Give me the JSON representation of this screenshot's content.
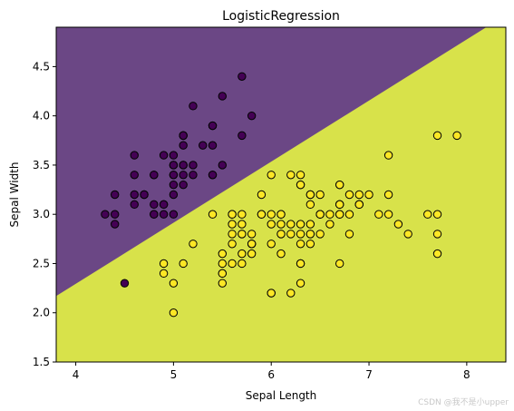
{
  "chart_data": {
    "type": "scatter",
    "title": "LogisticRegression",
    "xlabel": "Sepal Length",
    "ylabel": "Sepal Width",
    "xlim": [
      3.8,
      8.4
    ],
    "ylim": [
      1.5,
      4.9
    ],
    "xticks": [
      4,
      5,
      6,
      7,
      8
    ],
    "yticks": [
      1.5,
      2.0,
      2.5,
      3.0,
      3.5,
      4.0,
      4.5
    ],
    "yticks_labels": [
      "1.5",
      "2.0",
      "2.5",
      "3.0",
      "3.5",
      "4.0",
      "4.5"
    ],
    "grid": false,
    "decision_regions": {
      "class0_color": "#6b4785",
      "class1_color": "#d8e24a",
      "boundary": [
        [
          3.8,
          2.17
        ],
        [
          8.2,
          4.9
        ]
      ]
    },
    "series": [
      {
        "class": 0,
        "color": "#440154",
        "points": [
          [
            5.1,
            3.5
          ],
          [
            4.9,
            3.0
          ],
          [
            4.7,
            3.2
          ],
          [
            4.6,
            3.1
          ],
          [
            5.0,
            3.6
          ],
          [
            5.4,
            3.9
          ],
          [
            4.6,
            3.4
          ],
          [
            5.0,
            3.4
          ],
          [
            4.4,
            2.9
          ],
          [
            4.9,
            3.1
          ],
          [
            5.4,
            3.7
          ],
          [
            4.8,
            3.4
          ],
          [
            4.8,
            3.0
          ],
          [
            4.3,
            3.0
          ],
          [
            5.8,
            4.0
          ],
          [
            5.7,
            4.4
          ],
          [
            5.4,
            3.9
          ],
          [
            5.1,
            3.5
          ],
          [
            5.7,
            3.8
          ],
          [
            5.1,
            3.8
          ],
          [
            5.4,
            3.4
          ],
          [
            5.1,
            3.7
          ],
          [
            4.6,
            3.6
          ],
          [
            5.1,
            3.3
          ],
          [
            4.8,
            3.4
          ],
          [
            5.0,
            3.0
          ],
          [
            5.0,
            3.4
          ],
          [
            5.2,
            3.5
          ],
          [
            5.2,
            3.4
          ],
          [
            4.7,
            3.2
          ],
          [
            4.8,
            3.1
          ],
          [
            5.4,
            3.4
          ],
          [
            5.2,
            4.1
          ],
          [
            5.5,
            4.2
          ],
          [
            4.9,
            3.1
          ],
          [
            5.0,
            3.2
          ],
          [
            5.5,
            3.5
          ],
          [
            4.9,
            3.6
          ],
          [
            4.4,
            3.0
          ],
          [
            5.1,
            3.4
          ],
          [
            5.0,
            3.5
          ],
          [
            4.5,
            2.3
          ],
          [
            4.4,
            3.2
          ],
          [
            5.0,
            3.5
          ],
          [
            5.1,
            3.8
          ],
          [
            4.8,
            3.0
          ],
          [
            5.1,
            3.8
          ],
          [
            4.6,
            3.2
          ],
          [
            5.3,
            3.7
          ],
          [
            5.0,
            3.3
          ]
        ]
      },
      {
        "class": 1,
        "color": "#fde725",
        "points": [
          [
            7.0,
            3.2
          ],
          [
            6.4,
            3.2
          ],
          [
            6.9,
            3.1
          ],
          [
            5.5,
            2.3
          ],
          [
            6.5,
            2.8
          ],
          [
            5.7,
            2.8
          ],
          [
            6.3,
            3.3
          ],
          [
            4.9,
            2.4
          ],
          [
            6.6,
            2.9
          ],
          [
            5.2,
            2.7
          ],
          [
            5.0,
            2.0
          ],
          [
            5.9,
            3.0
          ],
          [
            6.0,
            2.2
          ],
          [
            6.1,
            2.9
          ],
          [
            5.6,
            2.9
          ],
          [
            6.7,
            3.1
          ],
          [
            5.6,
            3.0
          ],
          [
            5.8,
            2.7
          ],
          [
            6.2,
            2.2
          ],
          [
            5.6,
            2.5
          ],
          [
            5.9,
            3.2
          ],
          [
            6.1,
            2.8
          ],
          [
            6.3,
            2.5
          ],
          [
            6.1,
            2.8
          ],
          [
            6.4,
            2.9
          ],
          [
            6.6,
            3.0
          ],
          [
            6.8,
            2.8
          ],
          [
            6.7,
            3.0
          ],
          [
            6.0,
            2.9
          ],
          [
            5.7,
            2.6
          ],
          [
            5.5,
            2.4
          ],
          [
            5.5,
            2.4
          ],
          [
            5.8,
            2.7
          ],
          [
            6.0,
            2.7
          ],
          [
            5.4,
            3.0
          ],
          [
            6.0,
            3.4
          ],
          [
            6.7,
            3.1
          ],
          [
            6.3,
            2.3
          ],
          [
            5.6,
            3.0
          ],
          [
            5.5,
            2.5
          ],
          [
            5.5,
            2.6
          ],
          [
            6.1,
            3.0
          ],
          [
            5.8,
            2.6
          ],
          [
            5.0,
            2.3
          ],
          [
            5.6,
            2.7
          ],
          [
            5.7,
            3.0
          ],
          [
            5.7,
            2.9
          ],
          [
            6.2,
            2.9
          ],
          [
            5.1,
            2.5
          ],
          [
            5.7,
            2.8
          ],
          [
            6.3,
            3.3
          ],
          [
            5.8,
            2.7
          ],
          [
            7.1,
            3.0
          ],
          [
            6.3,
            2.9
          ],
          [
            6.5,
            3.0
          ],
          [
            7.6,
            3.0
          ],
          [
            4.9,
            2.5
          ],
          [
            7.3,
            2.9
          ],
          [
            6.7,
            2.5
          ],
          [
            7.2,
            3.6
          ],
          [
            6.5,
            3.2
          ],
          [
            6.4,
            2.7
          ],
          [
            6.8,
            3.0
          ],
          [
            5.7,
            2.5
          ],
          [
            5.8,
            2.8
          ],
          [
            6.4,
            3.2
          ],
          [
            6.5,
            3.0
          ],
          [
            7.7,
            3.8
          ],
          [
            7.7,
            2.6
          ],
          [
            6.0,
            2.2
          ],
          [
            6.9,
            3.2
          ],
          [
            5.6,
            2.8
          ],
          [
            7.7,
            2.8
          ],
          [
            6.3,
            2.7
          ],
          [
            6.7,
            3.3
          ],
          [
            7.2,
            3.2
          ],
          [
            6.2,
            2.8
          ],
          [
            6.1,
            3.0
          ],
          [
            6.4,
            2.8
          ],
          [
            7.2,
            3.0
          ],
          [
            7.4,
            2.8
          ],
          [
            7.9,
            3.8
          ],
          [
            6.4,
            2.8
          ],
          [
            6.3,
            2.8
          ],
          [
            6.1,
            2.6
          ],
          [
            7.7,
            3.0
          ],
          [
            6.3,
            3.4
          ],
          [
            6.4,
            3.1
          ],
          [
            6.0,
            3.0
          ],
          [
            6.9,
            3.1
          ],
          [
            6.7,
            3.1
          ],
          [
            6.9,
            3.1
          ],
          [
            5.8,
            2.7
          ],
          [
            6.8,
            3.2
          ],
          [
            6.7,
            3.3
          ],
          [
            6.7,
            3.0
          ],
          [
            6.3,
            2.5
          ],
          [
            6.5,
            3.0
          ],
          [
            6.2,
            3.4
          ],
          [
            5.9,
            3.0
          ]
        ]
      }
    ]
  },
  "watermark": "CSDN @我不是小upper"
}
